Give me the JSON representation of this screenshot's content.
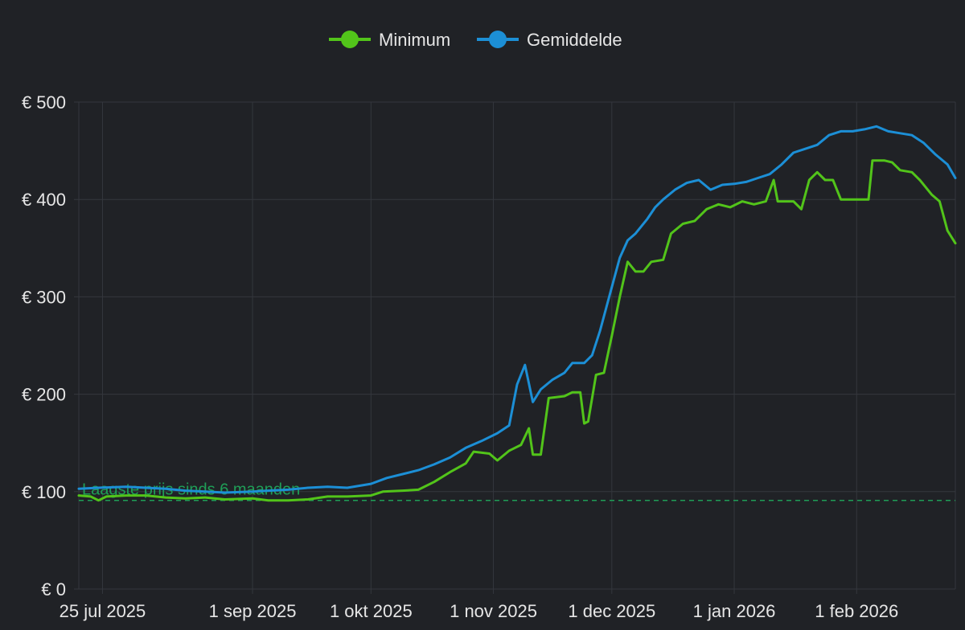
{
  "chart_data": {
    "type": "line",
    "title": "",
    "xlabel": "",
    "ylabel": "",
    "x_range": [
      "2025-07-19",
      "2026-02-26"
    ],
    "ylim": [
      0,
      500
    ],
    "grid": true,
    "legend_position": "top-center",
    "x_ticks": [
      {
        "date": "2025-07-25",
        "label": "25 jul 2025"
      },
      {
        "date": "2025-09-01",
        "label": "1 sep 2025"
      },
      {
        "date": "2025-10-01",
        "label": "1 okt 2025"
      },
      {
        "date": "2025-11-01",
        "label": "1 nov 2025"
      },
      {
        "date": "2025-12-01",
        "label": "1 dec 2025"
      },
      {
        "date": "2026-01-01",
        "label": "1 jan 2026"
      },
      {
        "date": "2026-02-01",
        "label": "1 feb 2026"
      }
    ],
    "y_ticks": [
      {
        "value": 0,
        "label": "€ 0"
      },
      {
        "value": 100,
        "label": "€ 100"
      },
      {
        "value": 200,
        "label": "€ 200"
      },
      {
        "value": 300,
        "label": "€ 300"
      },
      {
        "value": 400,
        "label": "€ 400"
      },
      {
        "value": 500,
        "label": "€ 500"
      }
    ],
    "reference_line": {
      "value": 91,
      "label": "Laagste prijs sinds 6 maanden",
      "color": "#1f9e57"
    },
    "series": [
      {
        "name": "Minimum",
        "color": "#52c41a",
        "points": [
          [
            "2025-07-19",
            96
          ],
          [
            "2025-07-22",
            95
          ],
          [
            "2025-07-24",
            91
          ],
          [
            "2025-07-26",
            95
          ],
          [
            "2025-07-31",
            96
          ],
          [
            "2025-08-05",
            96
          ],
          [
            "2025-08-10",
            94
          ],
          [
            "2025-08-15",
            93
          ],
          [
            "2025-08-20",
            94
          ],
          [
            "2025-08-25",
            92
          ],
          [
            "2025-09-01",
            93
          ],
          [
            "2025-09-05",
            91
          ],
          [
            "2025-09-10",
            91
          ],
          [
            "2025-09-15",
            92
          ],
          [
            "2025-09-20",
            95
          ],
          [
            "2025-09-25",
            95
          ],
          [
            "2025-10-01",
            96
          ],
          [
            "2025-10-04",
            100
          ],
          [
            "2025-10-09",
            101
          ],
          [
            "2025-10-13",
            102
          ],
          [
            "2025-10-17",
            110
          ],
          [
            "2025-10-21",
            120
          ],
          [
            "2025-10-25",
            129
          ],
          [
            "2025-10-27",
            141
          ],
          [
            "2025-10-31",
            139
          ],
          [
            "2025-11-02",
            132
          ],
          [
            "2025-11-05",
            142
          ],
          [
            "2025-11-08",
            148
          ],
          [
            "2025-11-10",
            165
          ],
          [
            "2025-11-11",
            138
          ],
          [
            "2025-11-13",
            138
          ],
          [
            "2025-11-15",
            196
          ],
          [
            "2025-11-19",
            198
          ],
          [
            "2025-11-21",
            202
          ],
          [
            "2025-11-23",
            202
          ],
          [
            "2025-11-24",
            170
          ],
          [
            "2025-11-25",
            172
          ],
          [
            "2025-11-27",
            220
          ],
          [
            "2025-11-29",
            222
          ],
          [
            "2025-12-01",
            260
          ],
          [
            "2025-12-03",
            300
          ],
          [
            "2025-12-05",
            336
          ],
          [
            "2025-12-07",
            326
          ],
          [
            "2025-12-09",
            326
          ],
          [
            "2025-12-11",
            336
          ],
          [
            "2025-12-14",
            338
          ],
          [
            "2025-12-16",
            365
          ],
          [
            "2025-12-19",
            375
          ],
          [
            "2025-12-22",
            378
          ],
          [
            "2025-12-25",
            390
          ],
          [
            "2025-12-28",
            395
          ],
          [
            "2025-12-31",
            392
          ],
          [
            "2026-01-03",
            398
          ],
          [
            "2026-01-06",
            395
          ],
          [
            "2026-01-09",
            398
          ],
          [
            "2026-01-11",
            420
          ],
          [
            "2026-01-12",
            398
          ],
          [
            "2026-01-16",
            398
          ],
          [
            "2026-01-18",
            390
          ],
          [
            "2026-01-20",
            420
          ],
          [
            "2026-01-22",
            428
          ],
          [
            "2026-01-24",
            420
          ],
          [
            "2026-01-26",
            420
          ],
          [
            "2026-01-28",
            400
          ],
          [
            "2026-02-02",
            400
          ],
          [
            "2026-02-04",
            400
          ],
          [
            "2026-02-05",
            440
          ],
          [
            "2026-02-08",
            440
          ],
          [
            "2026-02-10",
            438
          ],
          [
            "2026-02-12",
            430
          ],
          [
            "2026-02-15",
            428
          ],
          [
            "2026-02-17",
            420
          ],
          [
            "2026-02-20",
            405
          ],
          [
            "2026-02-22",
            398
          ],
          [
            "2026-02-24",
            368
          ],
          [
            "2026-02-26",
            355
          ]
        ]
      },
      {
        "name": "Gemiddelde",
        "color": "#1c8fd6",
        "points": [
          [
            "2025-07-19",
            103
          ],
          [
            "2025-07-24",
            104
          ],
          [
            "2025-07-31",
            105
          ],
          [
            "2025-08-05",
            104
          ],
          [
            "2025-08-10",
            103
          ],
          [
            "2025-08-15",
            101
          ],
          [
            "2025-08-20",
            100
          ],
          [
            "2025-08-25",
            99
          ],
          [
            "2025-09-01",
            100
          ],
          [
            "2025-09-05",
            101
          ],
          [
            "2025-09-10",
            102
          ],
          [
            "2025-09-15",
            104
          ],
          [
            "2025-09-20",
            105
          ],
          [
            "2025-09-25",
            104
          ],
          [
            "2025-10-01",
            108
          ],
          [
            "2025-10-05",
            114
          ],
          [
            "2025-10-09",
            118
          ],
          [
            "2025-10-13",
            122
          ],
          [
            "2025-10-17",
            128
          ],
          [
            "2025-10-21",
            135
          ],
          [
            "2025-10-25",
            145
          ],
          [
            "2025-10-29",
            152
          ],
          [
            "2025-11-02",
            160
          ],
          [
            "2025-11-05",
            168
          ],
          [
            "2025-11-07",
            210
          ],
          [
            "2025-11-09",
            230
          ],
          [
            "2025-11-11",
            192
          ],
          [
            "2025-11-13",
            205
          ],
          [
            "2025-11-16",
            215
          ],
          [
            "2025-11-19",
            222
          ],
          [
            "2025-11-21",
            232
          ],
          [
            "2025-11-24",
            232
          ],
          [
            "2025-11-26",
            240
          ],
          [
            "2025-11-28",
            265
          ],
          [
            "2025-12-01",
            310
          ],
          [
            "2025-12-03",
            340
          ],
          [
            "2025-12-05",
            358
          ],
          [
            "2025-12-07",
            365
          ],
          [
            "2025-12-10",
            380
          ],
          [
            "2025-12-12",
            392
          ],
          [
            "2025-12-14",
            400
          ],
          [
            "2025-12-17",
            410
          ],
          [
            "2025-12-20",
            417
          ],
          [
            "2025-12-23",
            420
          ],
          [
            "2025-12-26",
            410
          ],
          [
            "2025-12-29",
            415
          ],
          [
            "2026-01-01",
            416
          ],
          [
            "2026-01-04",
            418
          ],
          [
            "2026-01-07",
            422
          ],
          [
            "2026-01-10",
            426
          ],
          [
            "2026-01-13",
            436
          ],
          [
            "2026-01-16",
            448
          ],
          [
            "2026-01-19",
            452
          ],
          [
            "2026-01-22",
            456
          ],
          [
            "2026-01-25",
            466
          ],
          [
            "2026-01-28",
            470
          ],
          [
            "2026-01-31",
            470
          ],
          [
            "2026-02-03",
            472
          ],
          [
            "2026-02-06",
            475
          ],
          [
            "2026-02-09",
            470
          ],
          [
            "2026-02-12",
            468
          ],
          [
            "2026-02-15",
            466
          ],
          [
            "2026-02-18",
            458
          ],
          [
            "2026-02-21",
            446
          ],
          [
            "2026-02-24",
            436
          ],
          [
            "2026-02-26",
            422
          ]
        ]
      }
    ]
  }
}
